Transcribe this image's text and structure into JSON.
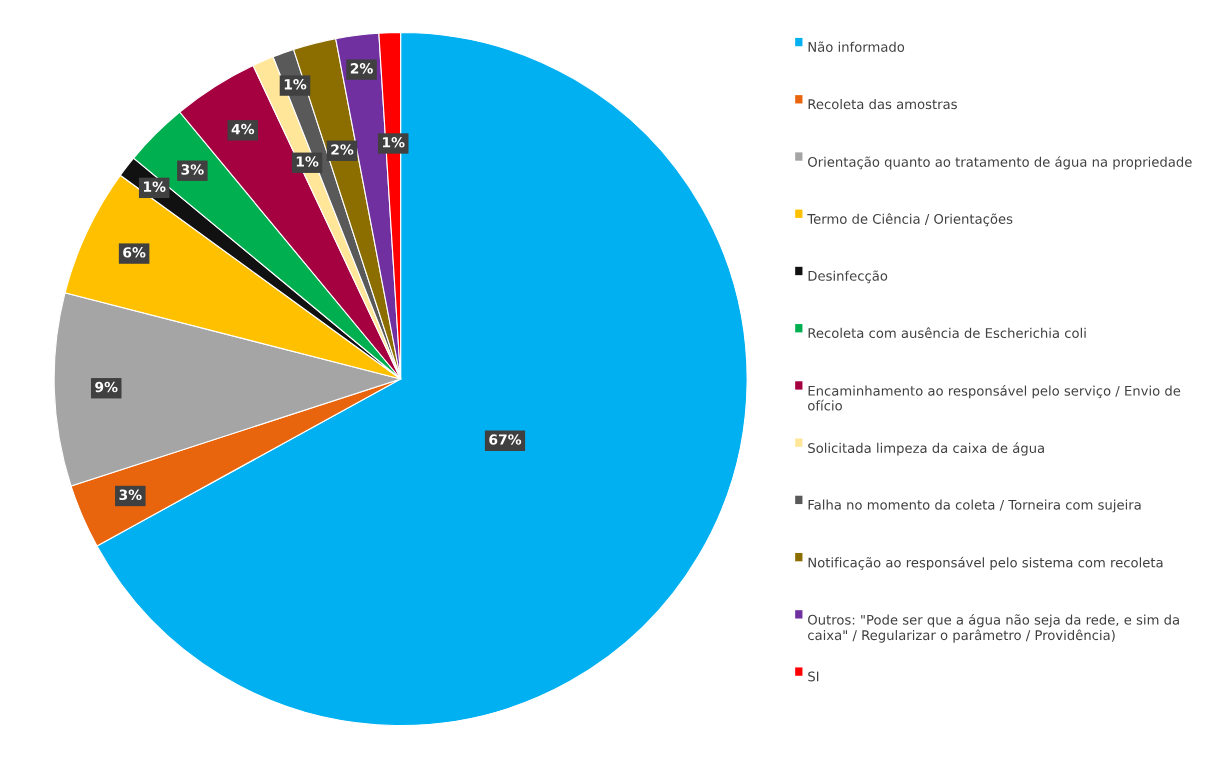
{
  "chart_data": {
    "type": "pie",
    "categories": [
      "Não informado",
      "Recoleta das amostras",
      "Orientação quanto ao tratamento de água na propriedade",
      "Termo de Ciência / Orientações",
      "Desinfecção",
      "Recoleta com ausência de Escherichia coli",
      "Encaminhamento ao responsável pelo serviço / Envio de ofício",
      "Solicitada limpeza da caixa de água",
      "Falha no momento da coleta / Torneira com sujeira",
      "Notificação ao responsável pelo sistema com recoleta",
      "Outros: \"Pode ser que a água não seja da rede, e sim da caixa\" / Regularizar o parâmetro / Providência)",
      "SI"
    ],
    "values": [
      67,
      3,
      9,
      6,
      1,
      3,
      4,
      1,
      1,
      2,
      2,
      1
    ],
    "colors": [
      "#00b0f0",
      "#e8650e",
      "#a5a5a5",
      "#ffc000",
      "#111111",
      "#00b050",
      "#a50040",
      "#ffe699",
      "#595959",
      "#8b6d00",
      "#7030a0",
      "#ff0000"
    ],
    "value_labels": [
      "67%",
      "3%",
      "9%",
      "6%",
      "1%",
      "3%",
      "4%",
      "1%",
      "1%",
      "2%",
      "2%",
      "1%"
    ],
    "legend": "right"
  }
}
